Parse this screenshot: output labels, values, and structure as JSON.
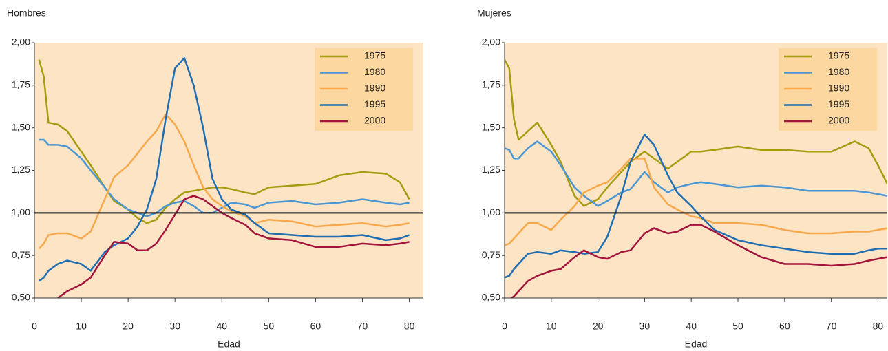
{
  "chart_data": [
    {
      "type": "line",
      "title": "Hombres",
      "x_label": "Edad",
      "x": [
        1,
        2,
        3,
        5,
        7,
        10,
        12,
        15,
        17,
        20,
        22,
        24,
        26,
        28,
        30,
        32,
        34,
        36,
        38,
        40,
        42,
        45,
        47,
        50,
        55,
        60,
        65,
        70,
        75,
        78,
        80
      ],
      "series": [
        {
          "name": "1975",
          "color": "#a59c10",
          "values": [
            1.9,
            1.8,
            1.53,
            1.52,
            1.48,
            1.36,
            1.28,
            1.15,
            1.07,
            1.02,
            0.97,
            0.94,
            0.96,
            1.03,
            1.08,
            1.12,
            1.13,
            1.14,
            1.15,
            1.15,
            1.14,
            1.12,
            1.11,
            1.15,
            1.16,
            1.17,
            1.22,
            1.24,
            1.23,
            1.18,
            1.08
          ]
        },
        {
          "name": "1980",
          "color": "#4b97d3",
          "values": [
            1.43,
            1.43,
            1.4,
            1.4,
            1.39,
            1.32,
            1.25,
            1.15,
            1.08,
            1.02,
            1.0,
            0.98,
            1.0,
            1.04,
            1.06,
            1.07,
            1.04,
            1.0,
            1.0,
            1.03,
            1.06,
            1.05,
            1.03,
            1.06,
            1.07,
            1.05,
            1.06,
            1.08,
            1.06,
            1.05,
            1.06
          ]
        },
        {
          "name": "1990",
          "color": "#f6a84b",
          "values": [
            0.79,
            0.82,
            0.87,
            0.88,
            0.88,
            0.85,
            0.89,
            1.08,
            1.21,
            1.28,
            1.35,
            1.42,
            1.48,
            1.58,
            1.52,
            1.42,
            1.28,
            1.15,
            1.08,
            1.04,
            1.01,
            0.98,
            0.94,
            0.96,
            0.95,
            0.92,
            0.93,
            0.94,
            0.92,
            0.93,
            0.94
          ]
        },
        {
          "name": "1995",
          "color": "#1f6db3",
          "values": [
            0.6,
            0.62,
            0.66,
            0.7,
            0.72,
            0.7,
            0.66,
            0.77,
            0.81,
            0.85,
            0.92,
            1.02,
            1.2,
            1.55,
            1.85,
            1.91,
            1.75,
            1.5,
            1.2,
            1.08,
            1.02,
            0.99,
            0.94,
            0.88,
            0.87,
            0.86,
            0.86,
            0.87,
            0.84,
            0.85,
            0.87
          ]
        },
        {
          "name": "2000",
          "color": "#a3143c",
          "values": [
            null,
            null,
            null,
            0.5,
            0.54,
            0.58,
            0.62,
            0.75,
            0.83,
            0.82,
            0.78,
            0.78,
            0.82,
            0.9,
            0.99,
            1.08,
            1.1,
            1.08,
            1.04,
            1.0,
            0.97,
            0.93,
            0.88,
            0.85,
            0.84,
            0.8,
            0.8,
            0.82,
            0.81,
            0.82,
            0.83
          ]
        }
      ],
      "xlim": [
        0,
        83
      ],
      "xticks": [
        0,
        10,
        20,
        30,
        40,
        50,
        60,
        70,
        80
      ],
      "ylim": [
        0.5,
        2.0
      ],
      "yticks": [
        {
          "value": 0.5,
          "label": "0,50"
        },
        {
          "value": 0.75,
          "label": "0,75"
        },
        {
          "value": 1.0,
          "label": "1,00"
        },
        {
          "value": 1.25,
          "label": "1,25"
        },
        {
          "value": 1.5,
          "label": "1,50"
        },
        {
          "value": 1.75,
          "label": "1,75"
        },
        {
          "value": 2.0,
          "label": "2,00"
        }
      ],
      "reference_line": 1.0,
      "legend": "top-right"
    },
    {
      "type": "line",
      "title": "Mujeres",
      "x_label": "Edad",
      "x": [
        0,
        1,
        2,
        3,
        5,
        7,
        10,
        12,
        15,
        17,
        20,
        22,
        25,
        27,
        30,
        32,
        35,
        37,
        40,
        42,
        45,
        50,
        55,
        60,
        65,
        70,
        75,
        78,
        80,
        82
      ],
      "series": [
        {
          "name": "1975",
          "color": "#a59c10",
          "values": [
            1.9,
            1.85,
            1.55,
            1.43,
            1.48,
            1.53,
            1.4,
            1.3,
            1.1,
            1.04,
            1.08,
            1.15,
            1.24,
            1.3,
            1.36,
            1.32,
            1.26,
            1.3,
            1.36,
            1.36,
            1.37,
            1.39,
            1.37,
            1.37,
            1.36,
            1.36,
            1.42,
            1.38,
            1.28,
            1.17
          ]
        },
        {
          "name": "1980",
          "color": "#4b97d3",
          "values": [
            1.38,
            1.37,
            1.32,
            1.32,
            1.38,
            1.42,
            1.36,
            1.28,
            1.15,
            1.1,
            1.04,
            1.07,
            1.12,
            1.14,
            1.24,
            1.18,
            1.12,
            1.15,
            1.17,
            1.18,
            1.17,
            1.15,
            1.16,
            1.15,
            1.13,
            1.13,
            1.13,
            1.12,
            1.11,
            1.1
          ]
        },
        {
          "name": "1990",
          "color": "#f6a84b",
          "values": [
            0.81,
            0.82,
            0.85,
            0.88,
            0.94,
            0.94,
            0.9,
            0.96,
            1.04,
            1.12,
            1.16,
            1.18,
            1.26,
            1.32,
            1.32,
            1.15,
            1.05,
            1.02,
            0.98,
            0.97,
            0.94,
            0.94,
            0.93,
            0.9,
            0.88,
            0.88,
            0.89,
            0.89,
            0.9,
            0.91
          ]
        },
        {
          "name": "1995",
          "color": "#1f6db3",
          "values": [
            0.62,
            0.63,
            0.67,
            0.7,
            0.76,
            0.77,
            0.76,
            0.78,
            0.77,
            0.76,
            0.77,
            0.86,
            1.1,
            1.3,
            1.46,
            1.4,
            1.22,
            1.12,
            1.04,
            0.98,
            0.9,
            0.84,
            0.81,
            0.79,
            0.77,
            0.76,
            0.76,
            0.78,
            0.79,
            0.79
          ]
        },
        {
          "name": "2000",
          "color": "#a3143c",
          "values": [
            null,
            0.49,
            0.51,
            0.54,
            0.6,
            0.63,
            0.66,
            0.67,
            0.74,
            0.78,
            0.74,
            0.73,
            0.77,
            0.78,
            0.88,
            0.91,
            0.88,
            0.89,
            0.93,
            0.93,
            0.89,
            0.81,
            0.74,
            0.7,
            0.7,
            0.69,
            0.7,
            0.72,
            0.73,
            0.74
          ]
        }
      ],
      "xlim": [
        0,
        82
      ],
      "xticks": [
        0,
        10,
        20,
        30,
        40,
        50,
        60,
        70,
        80
      ],
      "ylim": [
        0.5,
        2.0
      ],
      "yticks": [
        {
          "value": 0.5,
          "label": "0,50"
        },
        {
          "value": 0.75,
          "label": "0,75"
        },
        {
          "value": 1.0,
          "label": "1,00"
        },
        {
          "value": 1.25,
          "label": "1,25"
        },
        {
          "value": 1.5,
          "label": "1,50"
        },
        {
          "value": 1.75,
          "label": "1,75"
        },
        {
          "value": 2.0,
          "label": "2,00"
        }
      ],
      "reference_line": 1.0,
      "legend": "top-right"
    }
  ]
}
